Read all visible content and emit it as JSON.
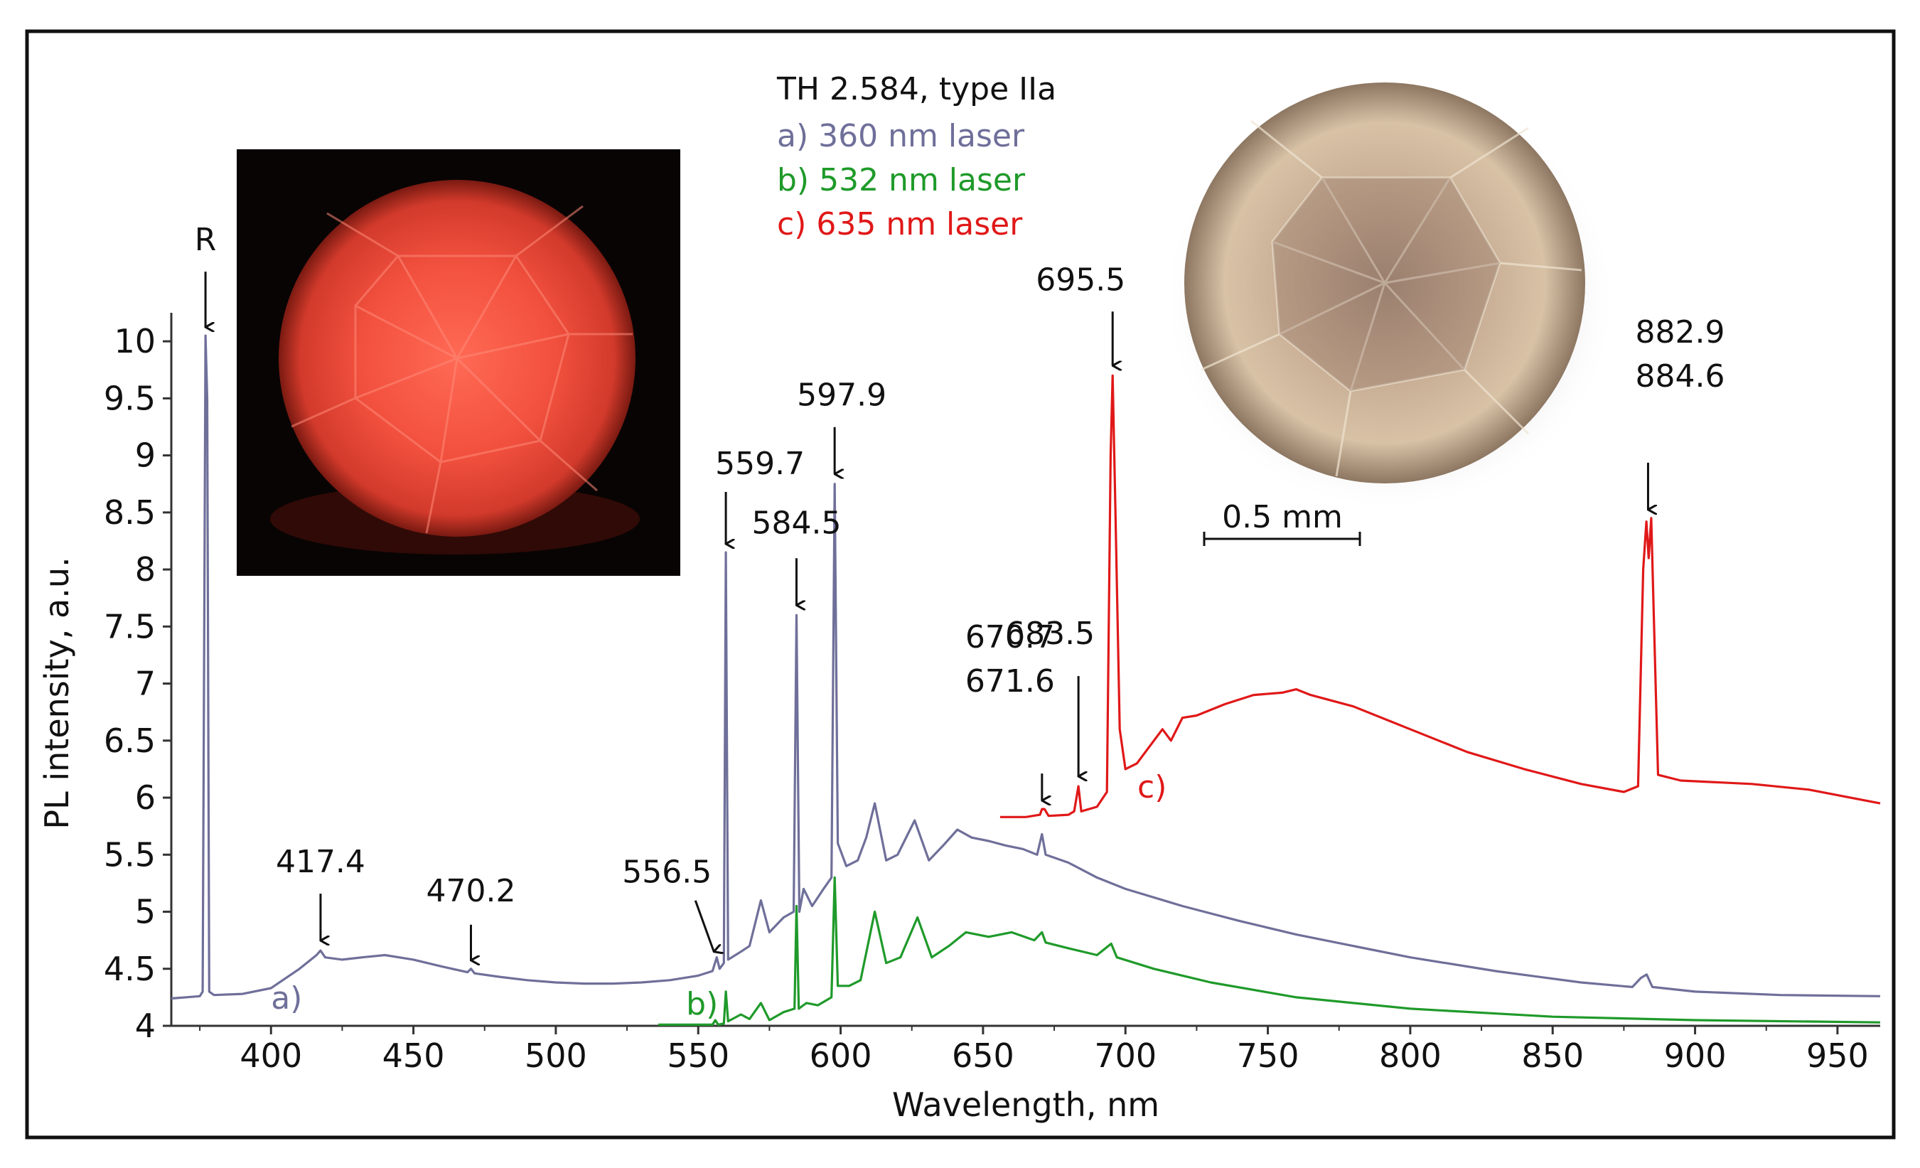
{
  "chart_data": {
    "type": "line",
    "title": "TH 2.584, type IIa",
    "xlabel": "Wavelength, nm",
    "ylabel": "PL intensity, a.u.",
    "xlim": [
      365,
      965
    ],
    "ylim": [
      4,
      10.25
    ],
    "x_ticks": [
      400,
      450,
      500,
      550,
      600,
      650,
      700,
      750,
      800,
      850,
      900,
      950
    ],
    "y_ticks": [
      {
        "v": 4,
        "t": "4"
      },
      {
        "v": 4.5,
        "t": "4.5"
      },
      {
        "v": 5,
        "t": "5"
      },
      {
        "v": 5.5,
        "t": "5.5"
      },
      {
        "v": 6,
        "t": "6"
      },
      {
        "v": 6.5,
        "t": "6.5"
      },
      {
        "v": 7,
        "t": "7"
      },
      {
        "v": 7.5,
        "t": "7.5"
      },
      {
        "v": 8,
        "t": "8"
      },
      {
        "v": 8.5,
        "t": "8.5"
      },
      {
        "v": 9,
        "t": "9"
      },
      {
        "v": 9.5,
        "t": "9.5"
      },
      {
        "v": 10,
        "t": "10"
      }
    ],
    "legend": [
      {
        "text": "a) 360 nm laser",
        "color": "#6f6f9a"
      },
      {
        "text": "b) 532 nm laser",
        "color": "#1f9a2a"
      },
      {
        "text": "c) 635 nm laser",
        "color": "#e01818"
      }
    ],
    "series": [
      {
        "name": "a)",
        "label": "a)",
        "color": "#6f6f9a",
        "points": [
          [
            365,
            4.24
          ],
          [
            375,
            4.26
          ],
          [
            376,
            4.3
          ],
          [
            377,
            10.05
          ],
          [
            377.6,
            9.5
          ],
          [
            378.3,
            4.3
          ],
          [
            380,
            4.27
          ],
          [
            390,
            4.28
          ],
          [
            400,
            4.33
          ],
          [
            410,
            4.5
          ],
          [
            416,
            4.62
          ],
          [
            417.4,
            4.66
          ],
          [
            419,
            4.6
          ],
          [
            425,
            4.58
          ],
          [
            432,
            4.6
          ],
          [
            440,
            4.62
          ],
          [
            450,
            4.58
          ],
          [
            460,
            4.52
          ],
          [
            469,
            4.47
          ],
          [
            470.2,
            4.5
          ],
          [
            471.5,
            4.46
          ],
          [
            480,
            4.43
          ],
          [
            490,
            4.4
          ],
          [
            500,
            4.38
          ],
          [
            510,
            4.37
          ],
          [
            520,
            4.37
          ],
          [
            530,
            4.38
          ],
          [
            540,
            4.4
          ],
          [
            550,
            4.44
          ],
          [
            555,
            4.48
          ],
          [
            556.5,
            4.6
          ],
          [
            557.5,
            4.5
          ],
          [
            559,
            4.55
          ],
          [
            559.7,
            8.15
          ],
          [
            560.5,
            4.58
          ],
          [
            565,
            4.65
          ],
          [
            568,
            4.7
          ],
          [
            572,
            5.1
          ],
          [
            575,
            4.82
          ],
          [
            580,
            4.95
          ],
          [
            583.5,
            5.0
          ],
          [
            584.5,
            7.6
          ],
          [
            585.5,
            5.0
          ],
          [
            587,
            5.2
          ],
          [
            590,
            5.05
          ],
          [
            594,
            5.2
          ],
          [
            596.8,
            5.3
          ],
          [
            597.9,
            8.75
          ],
          [
            599,
            5.6
          ],
          [
            602,
            5.4
          ],
          [
            606,
            5.45
          ],
          [
            609,
            5.65
          ],
          [
            612,
            5.95
          ],
          [
            616,
            5.45
          ],
          [
            620,
            5.5
          ],
          [
            626,
            5.8
          ],
          [
            631,
            5.45
          ],
          [
            636,
            5.58
          ],
          [
            641,
            5.72
          ],
          [
            646,
            5.65
          ],
          [
            652,
            5.62
          ],
          [
            658,
            5.58
          ],
          [
            664,
            5.55
          ],
          [
            669,
            5.5
          ],
          [
            670.7,
            5.68
          ],
          [
            672,
            5.5
          ],
          [
            680,
            5.43
          ],
          [
            690,
            5.3
          ],
          [
            700,
            5.2
          ],
          [
            720,
            5.05
          ],
          [
            740,
            4.92
          ],
          [
            760,
            4.8
          ],
          [
            780,
            4.7
          ],
          [
            800,
            4.6
          ],
          [
            830,
            4.48
          ],
          [
            860,
            4.38
          ],
          [
            878,
            4.34
          ],
          [
            881,
            4.42
          ],
          [
            883,
            4.45
          ],
          [
            885,
            4.34
          ],
          [
            900,
            4.3
          ],
          [
            930,
            4.27
          ],
          [
            965,
            4.26
          ]
        ]
      },
      {
        "name": "b)",
        "label": "b)",
        "color": "#1f9a2a",
        "points": [
          [
            536,
            4.01
          ],
          [
            550,
            4.01
          ],
          [
            555,
            4.01
          ],
          [
            556,
            4.05
          ],
          [
            557,
            4.01
          ],
          [
            559,
            4.02
          ],
          [
            559.7,
            4.3
          ],
          [
            560.5,
            4.04
          ],
          [
            565,
            4.1
          ],
          [
            568,
            4.06
          ],
          [
            572,
            4.2
          ],
          [
            575,
            4.05
          ],
          [
            580,
            4.12
          ],
          [
            583.8,
            4.15
          ],
          [
            584.5,
            5.05
          ],
          [
            585.3,
            4.15
          ],
          [
            588,
            4.2
          ],
          [
            592,
            4.18
          ],
          [
            596.8,
            4.25
          ],
          [
            597.9,
            5.3
          ],
          [
            599,
            4.35
          ],
          [
            603,
            4.35
          ],
          [
            607,
            4.4
          ],
          [
            612,
            5.0
          ],
          [
            616,
            4.55
          ],
          [
            621,
            4.6
          ],
          [
            627,
            4.95
          ],
          [
            632,
            4.6
          ],
          [
            638,
            4.7
          ],
          [
            644,
            4.82
          ],
          [
            652,
            4.78
          ],
          [
            660,
            4.82
          ],
          [
            668,
            4.75
          ],
          [
            670.7,
            4.82
          ],
          [
            672,
            4.73
          ],
          [
            680,
            4.68
          ],
          [
            690,
            4.62
          ],
          [
            695,
            4.72
          ],
          [
            697,
            4.6
          ],
          [
            710,
            4.5
          ],
          [
            730,
            4.38
          ],
          [
            760,
            4.25
          ],
          [
            800,
            4.15
          ],
          [
            850,
            4.08
          ],
          [
            900,
            4.05
          ],
          [
            965,
            4.03
          ]
        ]
      },
      {
        "name": "c)",
        "label": "c)",
        "color": "#e01818",
        "points": [
          [
            656,
            5.83
          ],
          [
            665,
            5.83
          ],
          [
            670,
            5.85
          ],
          [
            670.7,
            5.9
          ],
          [
            671.6,
            5.9
          ],
          [
            673,
            5.84
          ],
          [
            680,
            5.85
          ],
          [
            682,
            5.88
          ],
          [
            683.5,
            6.1
          ],
          [
            684.5,
            5.88
          ],
          [
            690,
            5.92
          ],
          [
            693.5,
            6.05
          ],
          [
            694.8,
            9.0
          ],
          [
            695.5,
            9.7
          ],
          [
            696.5,
            8.5
          ],
          [
            698,
            6.6
          ],
          [
            700,
            6.25
          ],
          [
            704,
            6.3
          ],
          [
            710,
            6.5
          ],
          [
            713,
            6.6
          ],
          [
            716,
            6.5
          ],
          [
            720,
            6.7
          ],
          [
            725,
            6.72
          ],
          [
            735,
            6.82
          ],
          [
            745,
            6.9
          ],
          [
            755,
            6.92
          ],
          [
            760,
            6.95
          ],
          [
            765,
            6.9
          ],
          [
            780,
            6.8
          ],
          [
            800,
            6.6
          ],
          [
            820,
            6.4
          ],
          [
            840,
            6.25
          ],
          [
            860,
            6.12
          ],
          [
            875,
            6.05
          ],
          [
            880,
            6.1
          ],
          [
            881.8,
            8.0
          ],
          [
            882.9,
            8.42
          ],
          [
            883.7,
            8.1
          ],
          [
            884.6,
            8.45
          ],
          [
            885.5,
            7.6
          ],
          [
            887,
            6.2
          ],
          [
            895,
            6.15
          ],
          [
            920,
            6.12
          ],
          [
            940,
            6.07
          ],
          [
            965,
            5.95
          ]
        ]
      }
    ],
    "annotations": [
      {
        "id": "R",
        "lines": [
          "R"
        ],
        "x": 377,
        "y": 10.05
      },
      {
        "id": "417.4",
        "lines": [
          "417.4"
        ],
        "x": 417.4,
        "y": 4.66
      },
      {
        "id": "470.2",
        "lines": [
          "470.2"
        ],
        "x": 470.2,
        "y": 4.5
      },
      {
        "id": "556.5",
        "lines": [
          "556.5"
        ],
        "x": 556.5,
        "y": 4.6
      },
      {
        "id": "559.7",
        "lines": [
          "559.7"
        ],
        "x": 559.7,
        "y": 8.15
      },
      {
        "id": "584.5",
        "lines": [
          "584.5"
        ],
        "x": 584.5,
        "y": 7.6
      },
      {
        "id": "597.9",
        "lines": [
          "597.9"
        ],
        "x": 597.9,
        "y": 8.75
      },
      {
        "id": "670.7",
        "lines": [
          "670.7",
          "671.6"
        ],
        "x": 670.7,
        "y": 5.9
      },
      {
        "id": "683.5",
        "lines": [
          "683.5"
        ],
        "x": 683.5,
        "y": 6.1
      },
      {
        "id": "695.5",
        "lines": [
          "695.5"
        ],
        "x": 695.5,
        "y": 9.7
      },
      {
        "id": "882.9",
        "lines": [
          "882.9",
          "884.6"
        ],
        "x": 883.5,
        "y": 8.45
      }
    ],
    "scale_bar": "0.5 mm"
  }
}
